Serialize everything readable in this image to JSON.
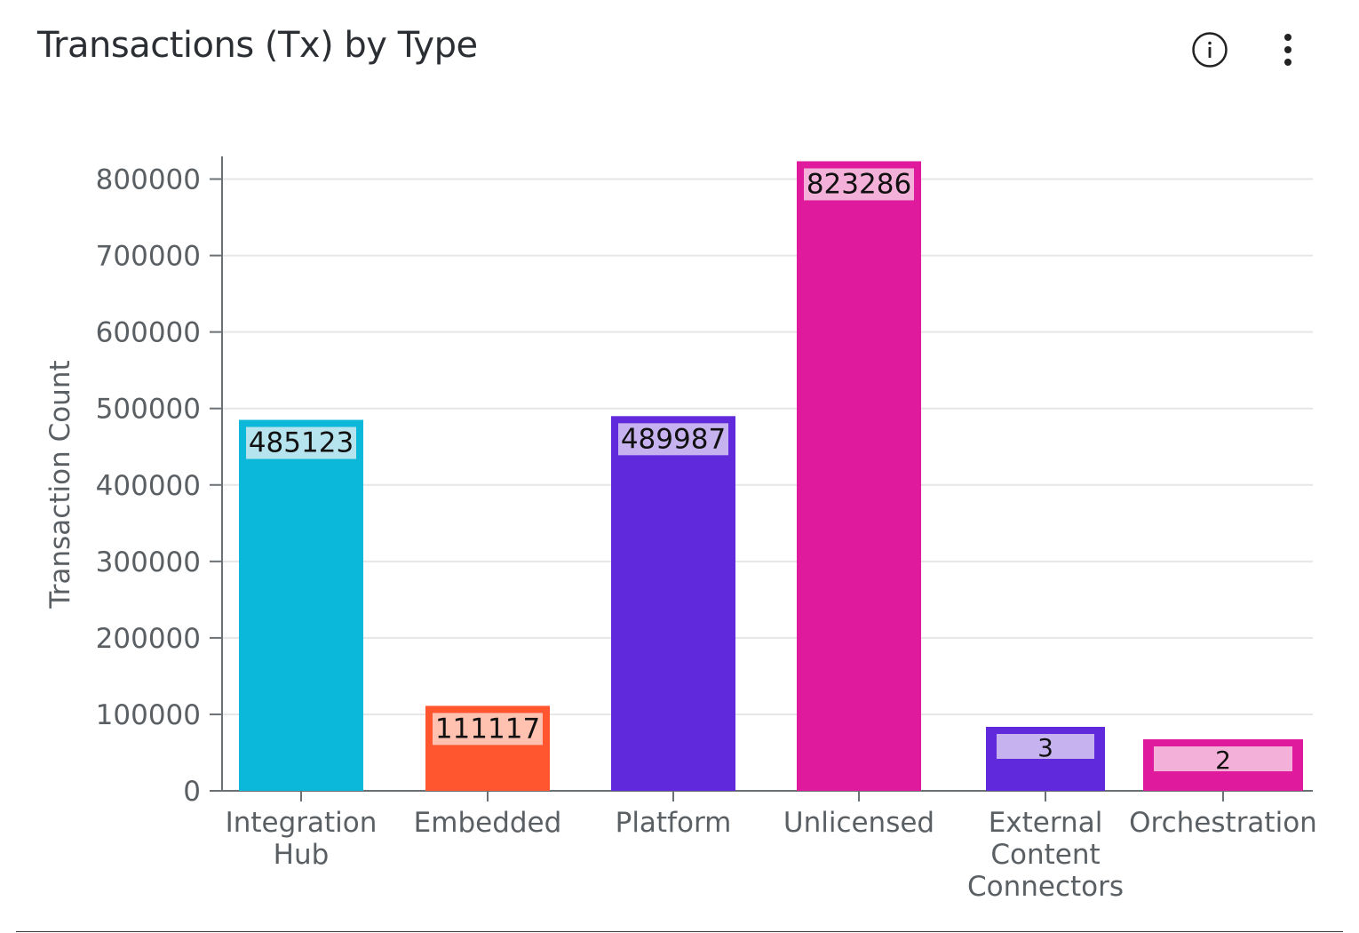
{
  "header": {
    "title": "Transactions (Tx) by Type",
    "info_icon": "info-circle-icon",
    "menu_icon": "more-vertical-icon"
  },
  "chart_data": {
    "type": "bar",
    "title": "Transactions (Tx) by Type",
    "xlabel": "",
    "ylabel": "Transaction Count",
    "ylim": [
      0,
      825000
    ],
    "yticks": [
      0,
      100000,
      200000,
      300000,
      400000,
      500000,
      600000,
      700000,
      800000
    ],
    "grid": true,
    "categories": [
      [
        "Integration",
        "Hub"
      ],
      [
        "Embedded"
      ],
      [
        "Platform"
      ],
      [
        "Unlicensed"
      ],
      [
        "External",
        "Content",
        "Connectors"
      ],
      [
        "Orchestration"
      ]
    ],
    "values": [
      485123,
      111117,
      489987,
      823286,
      3,
      2
    ],
    "labels": [
      "485123",
      "111117",
      "489987",
      "823286",
      "3",
      "2"
    ],
    "colors": [
      "#0bb8d9",
      "#ff5630",
      "#6129dc",
      "#df1a9c",
      "#6129dc",
      "#df1a9c"
    ],
    "label_bg": [
      "#b5e4ee",
      "#ffc2b0",
      "#c6b2ef",
      "#f3b0d8",
      "#c6b2ef",
      "#f3b0d8"
    ]
  }
}
